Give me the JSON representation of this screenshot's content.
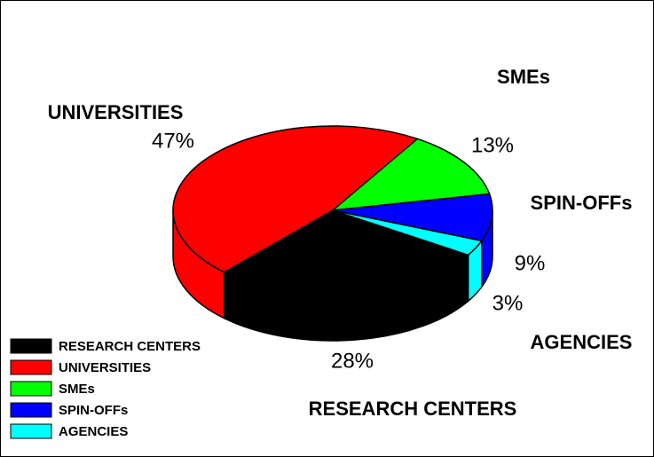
{
  "chart_data": {
    "type": "pie",
    "categories": [
      "RESEARCH CENTERS",
      "UNIVERSITIES",
      "SMEs",
      "SPIN-OFFs",
      "AGENCIES"
    ],
    "values": [
      28,
      47,
      13,
      9,
      3
    ],
    "value_labels": [
      "28%",
      "47%",
      "13%",
      "9%",
      "3%"
    ],
    "colors": [
      "#000000",
      "#ff0000",
      "#00ff00",
      "#0000ff",
      "#00ffff"
    ],
    "legend": "bottom-left"
  }
}
